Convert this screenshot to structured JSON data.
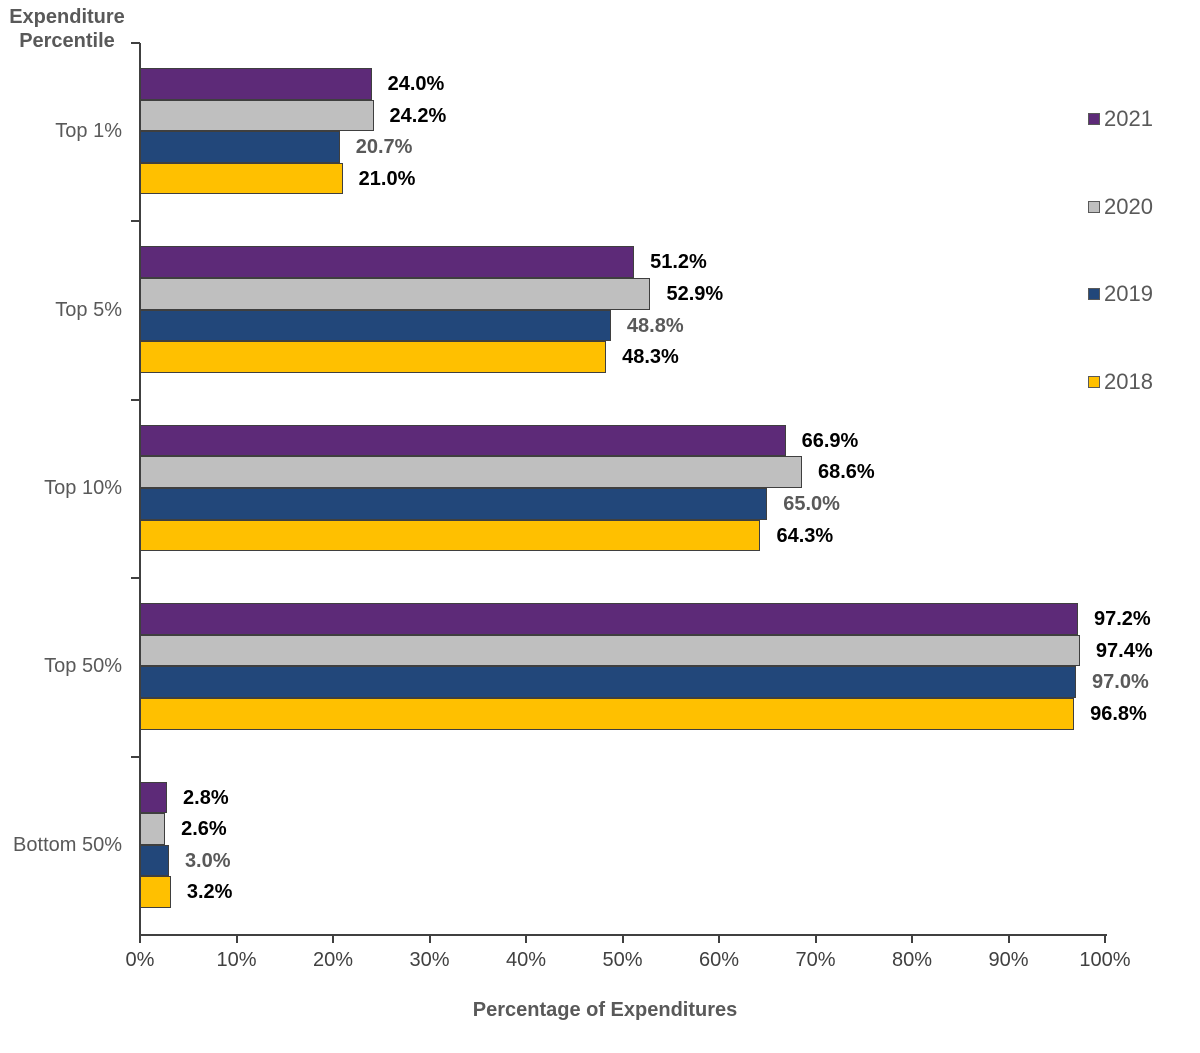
{
  "chart_data": {
    "type": "bar",
    "orientation": "horizontal",
    "y_axis_title": "Expenditure\nPercentile",
    "x_axis_title": "Percentage of Expenditures",
    "categories": [
      "Top 1%",
      "Top 5%",
      "Top 10%",
      "Top 50%",
      "Bottom 50%"
    ],
    "series": [
      {
        "name": "2021",
        "color": "#5D2A78",
        "label_color": "#000000",
        "values": [
          24.0,
          51.2,
          66.9,
          97.2,
          2.8
        ]
      },
      {
        "name": "2020",
        "color": "#BFBFBF",
        "label_color": "#000000",
        "values": [
          24.2,
          52.9,
          68.6,
          97.4,
          2.6
        ]
      },
      {
        "name": "2019",
        "color": "#22477A",
        "label_color": "#595959",
        "values": [
          20.7,
          48.8,
          65.0,
          97.0,
          3.0
        ]
      },
      {
        "name": "2018",
        "color": "#FFC000",
        "label_color": "#000000",
        "values": [
          21.0,
          48.3,
          64.3,
          96.8,
          3.2
        ]
      }
    ],
    "data_labels": {
      "decimals": 1,
      "suffix": "%"
    },
    "x_axis": {
      "min": 0,
      "max": 100,
      "tick_step": 10,
      "tick_labels": [
        "0%",
        "10%",
        "20%",
        "30%",
        "40%",
        "50%",
        "60%",
        "70%",
        "80%",
        "90%",
        "100%"
      ]
    },
    "legend": {
      "position": "right",
      "entries": [
        "2021",
        "2020",
        "2019",
        "2018"
      ]
    },
    "grid": false,
    "colors": {
      "axis": "#404040",
      "bar_border": "#3F3F3F",
      "axis_title_text": "#595959",
      "category_text": "#595959",
      "tick_label_text": "#404040",
      "legend_text": "#595959",
      "background": "#FFFFFF"
    }
  }
}
